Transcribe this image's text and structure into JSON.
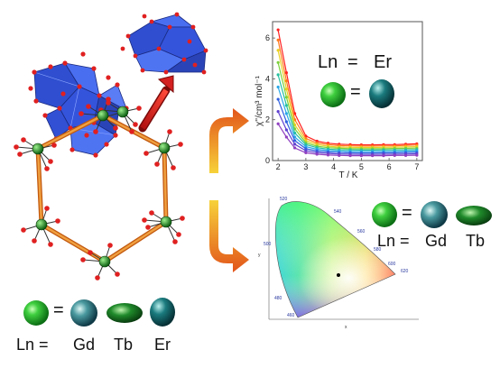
{
  "legend_bottom": {
    "equals": "=",
    "ln_label": "Ln =",
    "elements": [
      "Gd",
      "Tb",
      "Er"
    ]
  },
  "legend_top_right": {
    "ln_label": "Ln",
    "equals": "=",
    "element": "Er",
    "eq2": "="
  },
  "legend_mid_right": {
    "equals": "=",
    "ln_label": "Ln =",
    "elements": [
      "Gd",
      "Tb"
    ]
  },
  "chart_data": {
    "type": "line",
    "xlabel": "T / K",
    "ylabel": "χ''/cm³ mol⁻¹",
    "xlim": [
      1.8,
      7.2
    ],
    "ylim": [
      0,
      6.8
    ],
    "xticks": [
      "2",
      "3",
      "4",
      "5",
      "6",
      "7"
    ],
    "yticks": [
      "0",
      "2",
      "4",
      "6"
    ],
    "x": [
      2.0,
      2.3,
      2.6,
      3.0,
      3.4,
      3.8,
      4.2,
      4.6,
      5.0,
      5.4,
      5.8,
      6.2,
      6.6,
      7.0
    ],
    "series": [
      {
        "color": "#ff2020",
        "values": [
          6.4,
          4.3,
          2.3,
          1.2,
          0.95,
          0.85,
          0.8,
          0.78,
          0.77,
          0.77,
          0.78,
          0.78,
          0.8,
          0.82
        ]
      },
      {
        "color": "#ff7a1a",
        "values": [
          5.9,
          3.9,
          2.0,
          1.08,
          0.86,
          0.78,
          0.73,
          0.72,
          0.71,
          0.71,
          0.72,
          0.72,
          0.74,
          0.76
        ]
      },
      {
        "color": "#e8d020",
        "values": [
          5.4,
          3.5,
          1.75,
          0.97,
          0.78,
          0.7,
          0.66,
          0.65,
          0.64,
          0.64,
          0.65,
          0.66,
          0.67,
          0.68
        ]
      },
      {
        "color": "#7bd13a",
        "values": [
          4.8,
          3.1,
          1.55,
          0.87,
          0.7,
          0.63,
          0.6,
          0.58,
          0.58,
          0.58,
          0.58,
          0.59,
          0.6,
          0.61
        ]
      },
      {
        "color": "#26c0a0",
        "values": [
          4.2,
          2.7,
          1.35,
          0.78,
          0.63,
          0.56,
          0.53,
          0.52,
          0.51,
          0.51,
          0.52,
          0.52,
          0.53,
          0.54
        ]
      },
      {
        "color": "#2aa8e8",
        "values": [
          3.6,
          2.3,
          1.15,
          0.68,
          0.55,
          0.49,
          0.46,
          0.45,
          0.44,
          0.44,
          0.45,
          0.45,
          0.46,
          0.47
        ]
      },
      {
        "color": "#3060e0",
        "values": [
          3.0,
          1.9,
          0.98,
          0.58,
          0.47,
          0.42,
          0.39,
          0.38,
          0.37,
          0.37,
          0.38,
          0.38,
          0.39,
          0.4
        ]
      },
      {
        "color": "#6040d0",
        "values": [
          2.4,
          1.5,
          0.8,
          0.48,
          0.39,
          0.35,
          0.32,
          0.31,
          0.3,
          0.3,
          0.31,
          0.31,
          0.32,
          0.33
        ]
      },
      {
        "color": "#9040c0",
        "values": [
          1.8,
          1.15,
          0.62,
          0.38,
          0.31,
          0.27,
          0.25,
          0.24,
          0.24,
          0.24,
          0.24,
          0.25,
          0.25,
          0.26
        ]
      }
    ]
  },
  "cie": {
    "wavelengths": [
      "520",
      "540",
      "560",
      "580",
      "600",
      "620",
      "500",
      "480",
      "460"
    ],
    "axis_y": "y",
    "axis_x": "x"
  }
}
